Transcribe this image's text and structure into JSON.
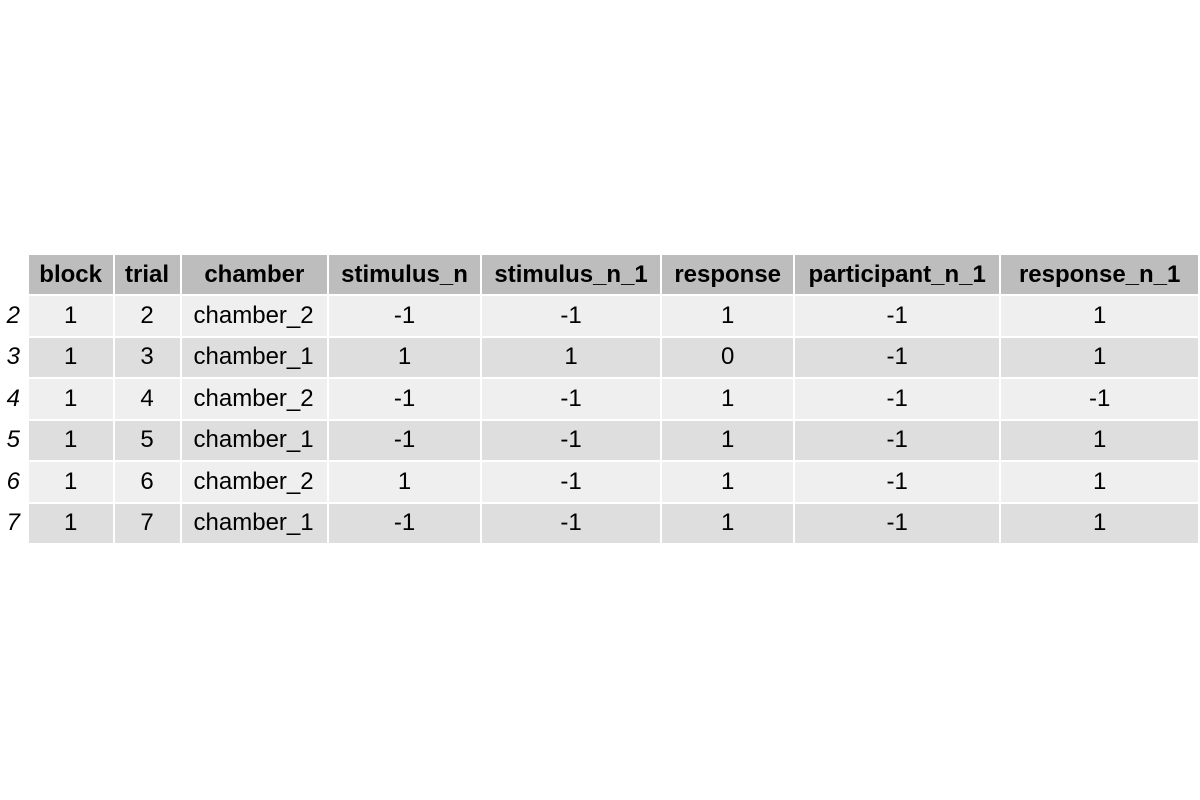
{
  "chart_data": {
    "type": "table",
    "columns": [
      "block",
      "trial",
      "chamber",
      "stimulus_n",
      "stimulus_n_1",
      "response",
      "participant_n_1",
      "response_n_1"
    ],
    "row_names": [
      "2",
      "3",
      "4",
      "5",
      "6",
      "7"
    ],
    "rows": [
      [
        "1",
        "2",
        "chamber_2",
        "-1",
        "-1",
        "1",
        "-1",
        "1"
      ],
      [
        "1",
        "3",
        "chamber_1",
        "1",
        "1",
        "0",
        "-1",
        "1"
      ],
      [
        "1",
        "4",
        "chamber_2",
        "-1",
        "-1",
        "1",
        "-1",
        "-1"
      ],
      [
        "1",
        "5",
        "chamber_1",
        "-1",
        "-1",
        "1",
        "-1",
        "1"
      ],
      [
        "1",
        "6",
        "chamber_2",
        "1",
        "-1",
        "1",
        "-1",
        "1"
      ],
      [
        "1",
        "7",
        "chamber_1",
        "-1",
        "-1",
        "1",
        "-1",
        "1"
      ]
    ],
    "colors": {
      "header_bg": "#bdbdbd",
      "row_odd_bg": "#efefef",
      "row_even_bg": "#dedede"
    }
  }
}
